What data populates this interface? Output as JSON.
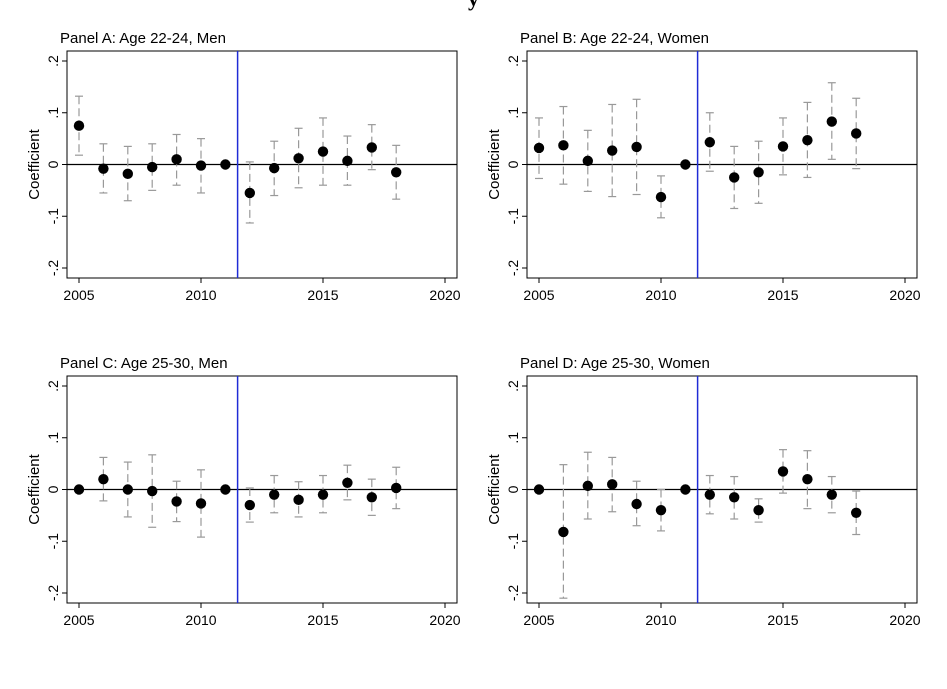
{
  "page_title": "y",
  "colors": {
    "point": "#000000",
    "ci": "#999999",
    "zero_line": "#000000",
    "event_line": "#1f2bd6"
  },
  "chart_data": [
    {
      "type": "scatter",
      "title": "Panel A: Age 22-24, Men",
      "ylabel": "Coefficient",
      "xlim": [
        2005,
        2020
      ],
      "ylim": [
        -0.2,
        0.2
      ],
      "xticks": [
        "2005",
        "2010",
        "2015",
        "2020"
      ],
      "yticks": [
        ".2",
        ".1",
        "0",
        "-.1",
        "-.2"
      ],
      "event_line_x": 2011.5,
      "grid": false,
      "x": [
        2005,
        2006,
        2007,
        2008,
        2009,
        2010,
        2011,
        2012,
        2013,
        2014,
        2015,
        2016,
        2017,
        2018
      ],
      "y": [
        0.075,
        -0.008,
        -0.018,
        -0.005,
        0.01,
        -0.002,
        0.0,
        -0.055,
        -0.007,
        0.012,
        0.025,
        0.007,
        0.033,
        -0.015
      ],
      "ci_low": [
        0.018,
        -0.055,
        -0.07,
        -0.05,
        -0.04,
        -0.055,
        0.0,
        -0.113,
        -0.06,
        -0.045,
        -0.04,
        -0.04,
        -0.01,
        -0.067
      ],
      "ci_high": [
        0.132,
        0.04,
        0.035,
        0.04,
        0.058,
        0.05,
        0.0,
        0.005,
        0.045,
        0.07,
        0.09,
        0.055,
        0.077,
        0.037
      ]
    },
    {
      "type": "scatter",
      "title": "Panel B: Age 22-24, Women",
      "ylabel": "Coefficient",
      "xlim": [
        2005,
        2020
      ],
      "ylim": [
        -0.2,
        0.2
      ],
      "xticks": [
        "2005",
        "2010",
        "2015",
        "2020"
      ],
      "yticks": [
        ".2",
        ".1",
        "0",
        "-.1",
        "-.2"
      ],
      "event_line_x": 2011.5,
      "grid": false,
      "x": [
        2005,
        2006,
        2007,
        2008,
        2009,
        2010,
        2011,
        2012,
        2013,
        2014,
        2015,
        2016,
        2017,
        2018
      ],
      "y": [
        0.032,
        0.037,
        0.007,
        0.027,
        0.034,
        -0.063,
        0.0,
        0.043,
        -0.025,
        -0.015,
        0.035,
        0.047,
        0.083,
        0.06
      ],
      "ci_low": [
        -0.027,
        -0.038,
        -0.052,
        -0.062,
        -0.058,
        -0.103,
        0.0,
        -0.013,
        -0.085,
        -0.075,
        -0.02,
        -0.025,
        0.01,
        -0.008
      ],
      "ci_high": [
        0.09,
        0.112,
        0.066,
        0.116,
        0.126,
        -0.022,
        0.0,
        0.1,
        0.035,
        0.045,
        0.09,
        0.12,
        0.158,
        0.128
      ]
    },
    {
      "type": "scatter",
      "title": "Panel C: Age 25-30, Men",
      "ylabel": "Coefficient",
      "xlim": [
        2005,
        2020
      ],
      "ylim": [
        -0.2,
        0.2
      ],
      "xticks": [
        "2005",
        "2010",
        "2015",
        "2020"
      ],
      "yticks": [
        ".2",
        ".1",
        "0",
        "-.1",
        "-.2"
      ],
      "event_line_x": 2011.5,
      "grid": false,
      "x": [
        2005,
        2006,
        2007,
        2008,
        2009,
        2010,
        2011,
        2012,
        2013,
        2014,
        2015,
        2016,
        2017,
        2018
      ],
      "y": [
        0.0,
        0.02,
        0.0,
        -0.003,
        -0.023,
        -0.027,
        0.0,
        -0.03,
        -0.01,
        -0.02,
        -0.01,
        0.013,
        -0.015,
        0.003
      ],
      "ci_low": [
        0.0,
        -0.022,
        -0.053,
        -0.073,
        -0.062,
        -0.092,
        0.0,
        -0.063,
        -0.045,
        -0.053,
        -0.045,
        -0.02,
        -0.05,
        -0.037
      ],
      "ci_high": [
        0.0,
        0.062,
        0.053,
        0.067,
        0.016,
        0.038,
        0.0,
        0.003,
        0.027,
        0.015,
        0.027,
        0.047,
        0.02,
        0.043
      ]
    },
    {
      "type": "scatter",
      "title": "Panel D: Age 25-30, Women",
      "ylabel": "Coefficient",
      "xlim": [
        2005,
        2020
      ],
      "ylim": [
        -0.2,
        0.2
      ],
      "xticks": [
        "2005",
        "2010",
        "2015",
        "2020"
      ],
      "yticks": [
        ".2",
        ".1",
        "0",
        "-.1",
        "-.2"
      ],
      "event_line_x": 2011.5,
      "grid": false,
      "x": [
        2005,
        2006,
        2007,
        2008,
        2009,
        2010,
        2011,
        2012,
        2013,
        2014,
        2015,
        2016,
        2017,
        2018
      ],
      "y": [
        0.0,
        -0.082,
        0.007,
        0.01,
        -0.028,
        -0.04,
        0.0,
        -0.01,
        -0.015,
        -0.04,
        0.035,
        0.02,
        -0.01,
        -0.045
      ],
      "ci_low": [
        0.0,
        -0.21,
        -0.057,
        -0.043,
        -0.07,
        -0.08,
        0.0,
        -0.047,
        -0.057,
        -0.063,
        -0.007,
        -0.037,
        -0.045,
        -0.087
      ],
      "ci_high": [
        0.0,
        0.048,
        0.072,
        0.062,
        0.016,
        0.0,
        0.0,
        0.027,
        0.025,
        -0.018,
        0.077,
        0.075,
        0.025,
        -0.003
      ]
    }
  ]
}
